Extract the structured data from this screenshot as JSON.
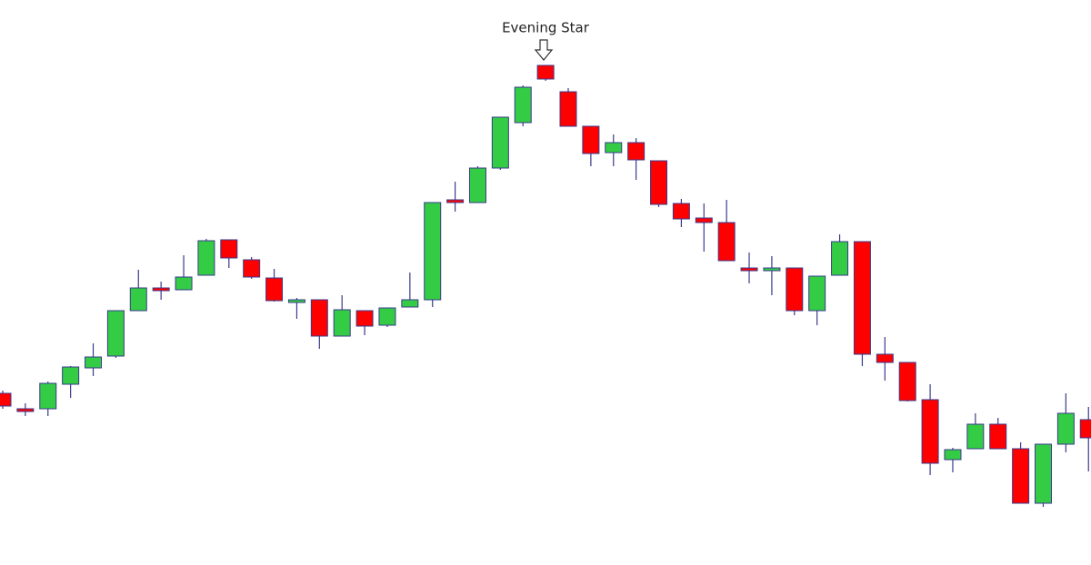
{
  "chart_data": {
    "type": "candlestick",
    "annotation": "Evening Star",
    "up_color": "#33cc44",
    "down_color": "#ff0000",
    "edge_color": "#3a3a8c",
    "ylim": [
      0,
      622
    ],
    "series": [
      {
        "open": [
          189,
          172,
          172,
          199,
          217,
          230,
          280,
          305,
          303,
          319,
          358,
          336,
          316,
          289,
          292,
          252,
          280,
          264,
          284,
          292,
          402,
          399,
          437,
          487,
          550,
          521,
          483,
          454,
          465,
          445,
          398,
          382,
          377,
          327,
          324,
          327,
          280,
          319,
          356,
          232,
          223,
          182,
          116,
          128,
          155,
          128,
          68,
          133,
          160
        ],
        "high": [
          192,
          178,
          202,
          219,
          244,
          280,
          325,
          312,
          341,
          359,
          358,
          339,
          326,
          294,
          292,
          297,
          280,
          283,
          322,
          399,
          422,
          439,
          493,
          528,
          550,
          525,
          483,
          474,
          470,
          445,
          403,
          398,
          402,
          344,
          340,
          327,
          318,
          364,
          356,
          251,
          223,
          199,
          129,
          167,
          162,
          135,
          133,
          189,
          174
        ],
        "low": [
          172,
          164,
          164,
          184,
          208,
          228,
          280,
          292,
          303,
          319,
          327,
          315,
          290,
          271,
          238,
          252,
          253,
          262,
          284,
          284,
          389,
          399,
          435,
          483,
          533,
          483,
          439,
          439,
          424,
          394,
          372,
          345,
          335,
          310,
          297,
          275,
          264,
          319,
          219,
          203,
          180,
          99,
          102,
          128,
          128,
          68,
          64,
          124,
          103
        ],
        "close": [
          175,
          169,
          200,
          218,
          229,
          280,
          305,
          302,
          317,
          357,
          338,
          317,
          291,
          292,
          252,
          281,
          263,
          283,
          292,
          399,
          399,
          437,
          493,
          526,
          535,
          483,
          453,
          465,
          446,
          397,
          381,
          377,
          335,
          324,
          327,
          280,
          318,
          356,
          232,
          223,
          181,
          112,
          127,
          155,
          128,
          68,
          133,
          167,
          140
        ]
      }
    ]
  }
}
